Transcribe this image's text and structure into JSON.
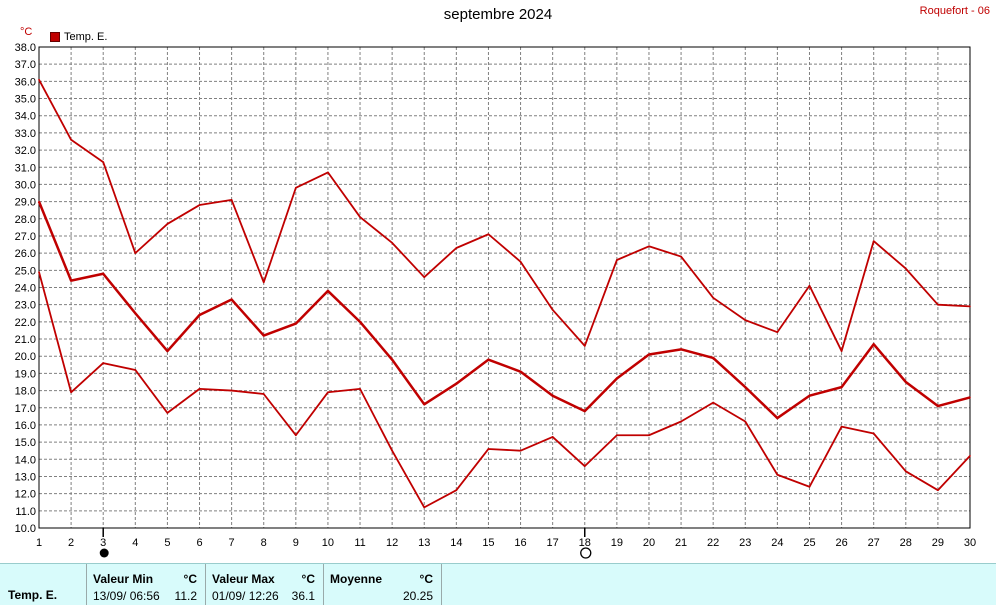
{
  "header": {
    "title": "septembre 2024",
    "station": "Roquefort - 06",
    "unit": "°C",
    "legend_label": "Temp. E."
  },
  "colors": {
    "series": "#c00000",
    "grid": "#808080",
    "stats_background": "#d8fbfb"
  },
  "markers": {
    "new_moon_icon": "new-moon-icon",
    "full_moon_icon": "full-moon-icon"
  },
  "chart_data": {
    "type": "line",
    "title": "septembre 2024",
    "xlabel": "",
    "ylabel": "°C",
    "x": [
      1,
      2,
      3,
      4,
      5,
      6,
      7,
      8,
      9,
      10,
      11,
      12,
      13,
      14,
      15,
      16,
      17,
      18,
      19,
      20,
      21,
      22,
      23,
      24,
      25,
      26,
      27,
      28,
      29,
      30
    ],
    "xlim": [
      1,
      30
    ],
    "ylim": [
      10,
      38
    ],
    "yticks": [
      "10.0",
      "11.0",
      "12.0",
      "13.0",
      "14.0",
      "15.0",
      "16.0",
      "17.0",
      "18.0",
      "19.0",
      "20.0",
      "21.0",
      "22.0",
      "23.0",
      "24.0",
      "25.0",
      "26.0",
      "27.0",
      "28.0",
      "29.0",
      "30.0",
      "31.0",
      "32.0",
      "33.0",
      "34.0",
      "35.0",
      "36.0",
      "37.0",
      "38.0"
    ],
    "xticks": [
      "1",
      "2",
      "3",
      "4",
      "5",
      "6",
      "7",
      "8",
      "9",
      "10",
      "11",
      "12",
      "13",
      "14",
      "15",
      "16",
      "17",
      "18",
      "19",
      "20",
      "21",
      "22",
      "23",
      "24",
      "25",
      "26",
      "27",
      "28",
      "29",
      "30"
    ],
    "grid": true,
    "legend": "top-left",
    "moon_markers": [
      {
        "day": 3,
        "phase": "new"
      },
      {
        "day": 18,
        "phase": "full"
      }
    ],
    "series": [
      {
        "role": "max",
        "values": [
          36.1,
          32.6,
          31.3,
          26.0,
          27.7,
          28.8,
          29.1,
          24.3,
          29.8,
          30.7,
          28.1,
          26.6,
          24.6,
          26.3,
          27.1,
          25.5,
          22.7,
          20.6,
          25.6,
          26.4,
          25.8,
          23.4,
          22.1,
          21.4,
          24.1,
          20.3,
          26.7,
          25.1,
          23.0,
          22.9
        ]
      },
      {
        "role": "mean",
        "values": [
          29.0,
          24.4,
          24.8,
          22.5,
          20.3,
          22.4,
          23.3,
          21.2,
          21.9,
          23.8,
          22.0,
          19.8,
          17.2,
          18.4,
          19.8,
          19.1,
          17.7,
          16.8,
          18.7,
          20.1,
          20.4,
          19.9,
          18.2,
          16.4,
          17.7,
          18.2,
          20.7,
          18.5,
          17.1,
          17.6
        ]
      },
      {
        "role": "min",
        "values": [
          24.9,
          17.9,
          19.6,
          19.2,
          16.7,
          18.1,
          18.0,
          17.8,
          15.4,
          17.9,
          18.1,
          14.5,
          11.2,
          12.2,
          14.6,
          14.5,
          15.3,
          13.6,
          15.4,
          15.4,
          16.2,
          17.3,
          16.2,
          13.1,
          12.4,
          15.9,
          15.5,
          13.3,
          12.2,
          14.2
        ]
      }
    ]
  },
  "stats": {
    "series_name": "Temp. E.",
    "min": {
      "header": "Valeur Min",
      "unit": "°C",
      "datetime": "13/09/ 06:56",
      "value": "11.2"
    },
    "max": {
      "header": "Valeur Max",
      "unit": "°C",
      "datetime": "01/09/ 12:26",
      "value": "36.1"
    },
    "mean": {
      "header": "Moyenne",
      "unit": "°C",
      "value": "20.25"
    }
  }
}
